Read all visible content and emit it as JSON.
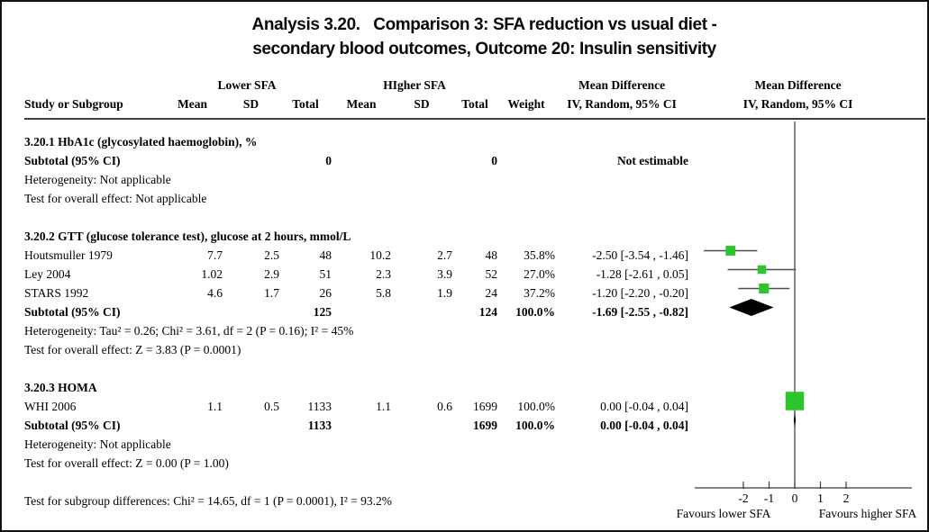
{
  "title": {
    "line1": "Analysis 3.20.   Comparison 3: SFA reduction vs usual diet -",
    "line2": "secondary blood outcomes, Outcome 20: Insulin sensitivity"
  },
  "header": {
    "group_lower": "Lower SFA",
    "group_higher": "HIgher SFA",
    "md_title": "Mean Difference",
    "md_method": "IV, Random, 95% CI",
    "study": "Study or Subgroup",
    "mean": "Mean",
    "sd": "SD",
    "total": "Total",
    "weight": "Weight"
  },
  "sections": [
    {
      "heading": "3.20.1 HbA1c (glycosylated haemoglobin), %",
      "subtotal": {
        "label": "Subtotal (95% CI)",
        "total1": "0",
        "total2": "0",
        "weight": "",
        "ci": "Not estimable"
      },
      "heterogeneity": "Heterogeneity: Not applicable",
      "test": "Test for overall effect: Not applicable"
    },
    {
      "heading": "3.20.2 GTT (glucose tolerance test), glucose at 2 hours, mmol/L",
      "studies": [
        {
          "name": "Houtsmuller 1979",
          "mean1": "7.7",
          "sd1": "2.5",
          "total1": "48",
          "mean2": "10.2",
          "sd2": "2.7",
          "total2": "48",
          "weight": "35.8%",
          "ci": "-2.50 [-3.54 , -1.46]"
        },
        {
          "name": "Ley 2004",
          "mean1": "1.02",
          "sd1": "2.9",
          "total1": "51",
          "mean2": "2.3",
          "sd2": "3.9",
          "total2": "52",
          "weight": "27.0%",
          "ci": "-1.28 [-2.61 , 0.05]"
        },
        {
          "name": "STARS 1992",
          "mean1": "4.6",
          "sd1": "1.7",
          "total1": "26",
          "mean2": "5.8",
          "sd2": "1.9",
          "total2": "24",
          "weight": "37.2%",
          "ci": "-1.20 [-2.20 , -0.20]"
        }
      ],
      "subtotal": {
        "label": "Subtotal (95% CI)",
        "total1": "125",
        "total2": "124",
        "weight": "100.0%",
        "ci": "-1.69 [-2.55 , -0.82]"
      },
      "heterogeneity": "Heterogeneity: Tau² = 0.26; Chi² = 3.61, df = 2 (P = 0.16); I² = 45%",
      "test": "Test for overall effect: Z = 3.83 (P = 0.0001)"
    },
    {
      "heading": "3.20.3 HOMA",
      "studies": [
        {
          "name": "WHI 2006",
          "mean1": "1.1",
          "sd1": "0.5",
          "total1": "1133",
          "mean2": "1.1",
          "sd2": "0.6",
          "total2": "1699",
          "weight": "100.0%",
          "ci": "0.00 [-0.04 , 0.04]"
        }
      ],
      "subtotal": {
        "label": "Subtotal (95% CI)",
        "total1": "1133",
        "total2": "1699",
        "weight": "100.0%",
        "ci": "0.00 [-0.04 , 0.04]"
      },
      "heterogeneity": "Heterogeneity: Not applicable",
      "test": "Test for overall effect: Z = 0.00 (P = 1.00)"
    }
  ],
  "footer": {
    "subgroup_test": "Test for subgroup differences: Chi² = 14.65, df = 1 (P = 0.0001), I² = 93.2%"
  },
  "chart_data": {
    "type": "scatter",
    "subtype": "forest-plot",
    "title": "Analysis 3.20. Comparison 3: SFA reduction vs usual diet - secondary blood outcomes, Outcome 20: Insulin sensitivity",
    "effect_measure": "Mean Difference, IV, Random, 95% CI",
    "axis": {
      "ticks": [
        -2,
        -1,
        0,
        1,
        2
      ],
      "zero_line": 0,
      "label_left": "Favours lower SFA",
      "label_right": "Favours higher SFA"
    },
    "colors": {
      "marker": "#2DC42D",
      "diamond": "#000000",
      "ci_line": "#4d4d4d",
      "axis": "#3a3a3a"
    },
    "forest": [
      {
        "label": "Houtsmuller 1979",
        "type": "study",
        "estimate": -2.5,
        "ci_low": -3.54,
        "ci_high": -1.46,
        "weight_pct": 35.8
      },
      {
        "label": "Ley 2004",
        "type": "study",
        "estimate": -1.28,
        "ci_low": -2.61,
        "ci_high": 0.05,
        "weight_pct": 27.0
      },
      {
        "label": "STARS 1992",
        "type": "study",
        "estimate": -1.2,
        "ci_low": -2.2,
        "ci_high": -0.2,
        "weight_pct": 37.2
      },
      {
        "label": "Subtotal GTT",
        "type": "subtotal",
        "estimate": -1.69,
        "ci_low": -2.55,
        "ci_high": -0.82
      },
      {
        "label": "WHI 2006",
        "type": "study",
        "estimate": 0.0,
        "ci_low": -0.04,
        "ci_high": 0.04,
        "weight_pct": 100.0
      },
      {
        "label": "Subtotal HOMA",
        "type": "subtotal",
        "estimate": 0.0,
        "ci_low": -0.04,
        "ci_high": 0.04
      }
    ]
  }
}
